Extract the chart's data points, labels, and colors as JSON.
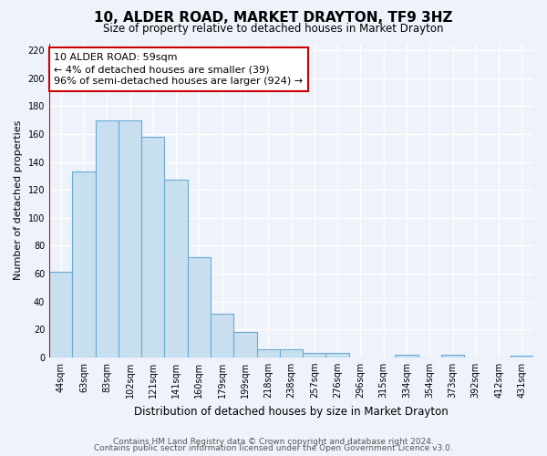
{
  "title": "10, ALDER ROAD, MARKET DRAYTON, TF9 3HZ",
  "subtitle": "Size of property relative to detached houses in Market Drayton",
  "xlabel": "Distribution of detached houses by size in Market Drayton",
  "ylabel": "Number of detached properties",
  "bin_labels": [
    "44sqm",
    "63sqm",
    "83sqm",
    "102sqm",
    "121sqm",
    "141sqm",
    "160sqm",
    "179sqm",
    "199sqm",
    "218sqm",
    "238sqm",
    "257sqm",
    "276sqm",
    "296sqm",
    "315sqm",
    "334sqm",
    "354sqm",
    "373sqm",
    "392sqm",
    "412sqm",
    "431sqm"
  ],
  "bar_heights": [
    61,
    133,
    170,
    170,
    158,
    127,
    72,
    31,
    18,
    6,
    6,
    3,
    3,
    0,
    0,
    2,
    0,
    2,
    0,
    0,
    1
  ],
  "bar_color": "#c8dff0",
  "bar_edge_color": "#6aaad4",
  "highlight_line_color": "#cc0000",
  "annotation_text": "10 ALDER ROAD: 59sqm\n← 4% of detached houses are smaller (39)\n96% of semi-detached houses are larger (924) →",
  "annotation_box_color": "#ffffff",
  "annotation_box_edge_color": "#cc0000",
  "ylim": [
    0,
    225
  ],
  "yticks": [
    0,
    20,
    40,
    60,
    80,
    100,
    120,
    140,
    160,
    180,
    200,
    220
  ],
  "footer_line1": "Contains HM Land Registry data © Crown copyright and database right 2024.",
  "footer_line2": "Contains public sector information licensed under the Open Government Licence v3.0.",
  "background_color": "#eef2fb",
  "grid_color": "#ffffff",
  "title_fontsize": 11,
  "subtitle_fontsize": 8.5,
  "xlabel_fontsize": 8.5,
  "ylabel_fontsize": 8,
  "tick_fontsize": 7,
  "footer_fontsize": 6.5,
  "annotation_fontsize": 8
}
